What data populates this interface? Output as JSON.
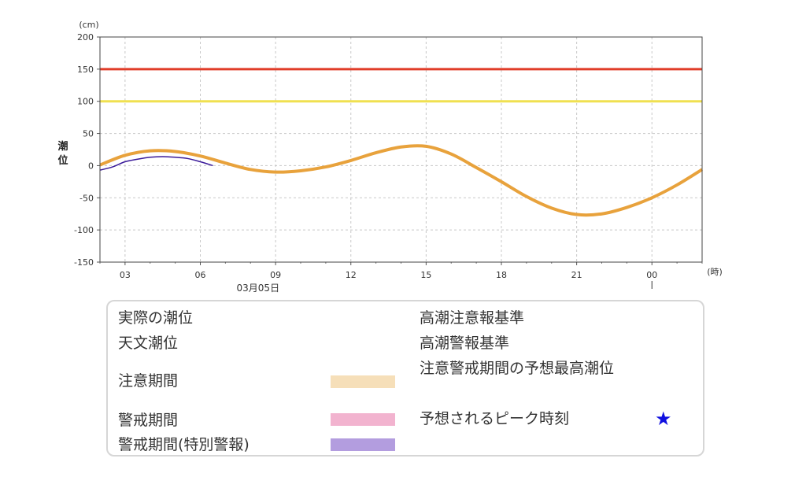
{
  "chart_data": {
    "type": "line",
    "date_label": "03月05日",
    "y_unit": "(cm)",
    "x_unit": "(時)",
    "ylabel": "潮位",
    "ylim": [
      -150,
      200
    ],
    "yticks": [
      "200",
      "150",
      "100",
      "50",
      "0",
      "-50",
      "-100",
      "-150"
    ],
    "xticks": [
      "03",
      "06",
      "09",
      "12",
      "15",
      "18",
      "21",
      "00"
    ],
    "grid": true,
    "reference_lines": [
      {
        "name": "高潮警報基準",
        "value": 150,
        "color": "#e03c28"
      },
      {
        "name": "高潮注意報基準",
        "value": 100,
        "color": "#f0e050"
      }
    ],
    "series": [
      {
        "name": "天文潮位",
        "color": "#e8a23c",
        "x": [
          2,
          3,
          4,
          5,
          6,
          7,
          8,
          9,
          10,
          11,
          12,
          13,
          14,
          15,
          16,
          17,
          18,
          19,
          20,
          21,
          22,
          23,
          24,
          25,
          26
        ],
        "y": [
          1,
          16,
          23,
          22,
          15,
          4,
          -6,
          -10,
          -8,
          -2,
          8,
          20,
          29,
          30,
          18,
          -3,
          -25,
          -48,
          -66,
          -76,
          -75,
          -65,
          -50,
          -30,
          -6
        ]
      },
      {
        "name": "実際の潮位",
        "color": "#3a1a9a",
        "x": [
          2,
          2.5,
          3,
          3.5,
          4,
          4.5,
          5,
          5.5,
          6,
          6.5
        ],
        "y": [
          -7,
          -2,
          6,
          10,
          13,
          14,
          13,
          11,
          6,
          0
        ]
      }
    ]
  },
  "legend": {
    "actual": "実際の潮位",
    "astronomical": "天文潮位",
    "caution_period": "注意期間",
    "warning_period": "警戒期間",
    "special_warning_period": "警戒期間(特別警報)",
    "advisory_level": "高潮注意報基準",
    "warning_level": "高潮警報基準",
    "forecast_max": "注意警戒期間の予想最高潮位",
    "peak_time": "予想されるピーク時刻",
    "colors": {
      "actual": "#3a1a9a",
      "astronomical": "#e8a23c",
      "caution_period": "#f6dfb9",
      "warning_period": "#f2b3cf",
      "special_warning_period": "#b39ddf",
      "advisory_level": "#f0e050",
      "warning_level": "#e03c28",
      "forecast_max": "#7ef3f3",
      "peak_time": "#1010e0"
    },
    "peak_icon": "star-icon"
  }
}
